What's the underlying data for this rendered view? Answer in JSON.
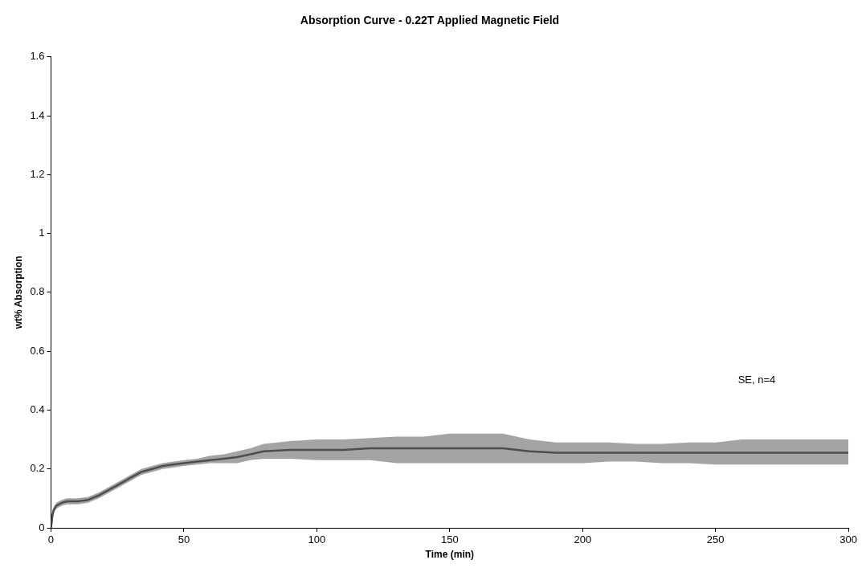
{
  "chart_data": {
    "type": "line",
    "title": "Absorption Curve - 0.22T Applied Magnetic Field",
    "xlabel": "Time (min)",
    "ylabel": "wt% Absorption",
    "annotations": [
      "SE, n=4"
    ],
    "xlim": [
      0,
      300
    ],
    "xticks": [
      0,
      50,
      100,
      150,
      200,
      250,
      300
    ],
    "ylim": [
      0,
      1.6
    ],
    "yticks": [
      0,
      0.2,
      0.4,
      0.6,
      0.8,
      1,
      1.2,
      1.4,
      1.6
    ],
    "grid": false,
    "legend": false,
    "marker": "none",
    "series": [
      {
        "color": "#404040",
        "x": [
          0,
          0.5,
          1,
          2,
          4,
          6,
          10,
          14,
          18,
          22,
          26,
          30,
          34,
          38,
          42,
          46,
          50,
          55,
          60,
          65,
          70,
          75,
          80,
          90,
          100,
          110,
          120,
          130,
          140,
          150,
          160,
          170,
          180,
          190,
          200,
          210,
          220,
          230,
          240,
          250,
          260,
          270,
          280,
          290,
          300
        ],
        "values": [
          0,
          0.04,
          0.06,
          0.075,
          0.085,
          0.09,
          0.09,
          0.095,
          0.11,
          0.13,
          0.15,
          0.17,
          0.19,
          0.2,
          0.21,
          0.215,
          0.22,
          0.225,
          0.23,
          0.235,
          0.24,
          0.25,
          0.26,
          0.265,
          0.265,
          0.265,
          0.27,
          0.27,
          0.27,
          0.27,
          0.27,
          0.27,
          0.26,
          0.255,
          0.255,
          0.255,
          0.255,
          0.255,
          0.255,
          0.255,
          0.255,
          0.255,
          0.255,
          0.255,
          0.255
        ],
        "lower": [
          0,
          0.03,
          0.05,
          0.065,
          0.075,
          0.08,
          0.08,
          0.085,
          0.1,
          0.12,
          0.14,
          0.16,
          0.18,
          0.19,
          0.2,
          0.205,
          0.21,
          0.215,
          0.22,
          0.22,
          0.22,
          0.23,
          0.235,
          0.235,
          0.23,
          0.23,
          0.23,
          0.22,
          0.22,
          0.22,
          0.22,
          0.22,
          0.22,
          0.22,
          0.22,
          0.225,
          0.225,
          0.22,
          0.22,
          0.215,
          0.215,
          0.215,
          0.215,
          0.215,
          0.215
        ],
        "upper": [
          0.01,
          0.05,
          0.07,
          0.085,
          0.095,
          0.1,
          0.1,
          0.105,
          0.12,
          0.14,
          0.16,
          0.18,
          0.2,
          0.21,
          0.22,
          0.225,
          0.23,
          0.235,
          0.245,
          0.25,
          0.26,
          0.27,
          0.285,
          0.295,
          0.3,
          0.3,
          0.305,
          0.31,
          0.31,
          0.32,
          0.32,
          0.32,
          0.3,
          0.29,
          0.29,
          0.29,
          0.285,
          0.285,
          0.29,
          0.29,
          0.3,
          0.3,
          0.3,
          0.3,
          0.3
        ]
      }
    ]
  }
}
